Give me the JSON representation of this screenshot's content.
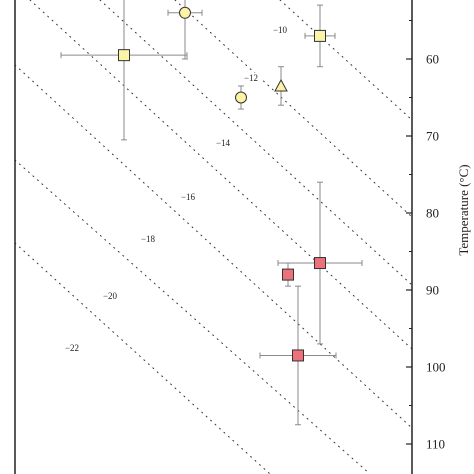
{
  "chart_data": {
    "type": "scatter",
    "title": "",
    "y_axis": {
      "label": "Temperature (°C)",
      "position": "right",
      "inverted": true,
      "range": [
        40,
        114
      ],
      "ticks": [
        60,
        70,
        80,
        90,
        100,
        110
      ]
    },
    "x_axis": {
      "label": "",
      "ticks": [],
      "range": [
        0,
        400
      ]
    },
    "contour_lines": [
      {
        "label": "−10"
      },
      {
        "label": "−12"
      },
      {
        "label": "−14"
      },
      {
        "label": "−16"
      },
      {
        "label": "−18"
      },
      {
        "label": "−20"
      },
      {
        "label": "−22"
      }
    ],
    "points": [
      {
        "marker": "circle",
        "color": "#fbf3a6",
        "x": 170,
        "y": 54.0,
        "x_err": 17,
        "y_err": 6.0
      },
      {
        "marker": "square",
        "color": "#fbf3a6",
        "x": 109,
        "y": 59.5,
        "x_err": 63,
        "y_err": 11.0
      },
      {
        "marker": "square",
        "color": "#fbf3a6",
        "x": 305,
        "y": 57.0,
        "x_err": 15,
        "y_err": 4.0
      },
      {
        "marker": "circle",
        "color": "#fbf3a6",
        "x": 226,
        "y": 65.0,
        "x_err": 5,
        "y_err": 1.5
      },
      {
        "marker": "triangle",
        "color": "#fbf3a6",
        "x": 266,
        "y": 63.5,
        "x_err": 0,
        "y_err": 2.5
      },
      {
        "marker": "square",
        "color": "#ee707a",
        "x": 273,
        "y": 88.0,
        "x_err": 5,
        "y_err": 1.5
      },
      {
        "marker": "square",
        "color": "#ee707a",
        "x": 305,
        "y": 86.5,
        "x_err": 42,
        "y_err": 10.5
      },
      {
        "marker": "square",
        "color": "#ee707a",
        "x": 283,
        "y": 98.5,
        "x_err": 38,
        "y_err": 9.0
      }
    ]
  }
}
